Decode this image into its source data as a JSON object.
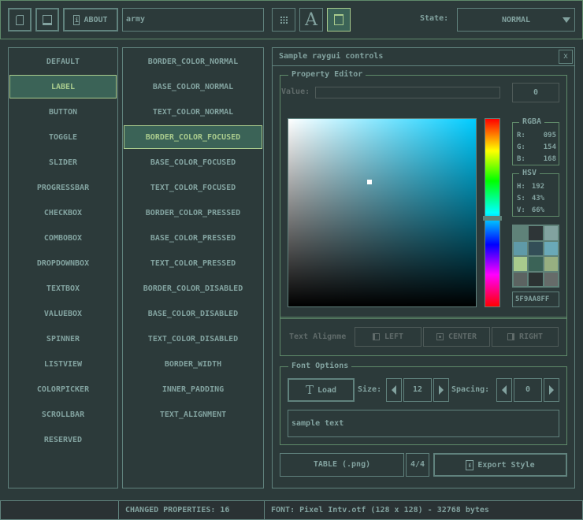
{
  "toolbar": {
    "about_label": "ABOUT",
    "style_name": "army",
    "state_label": "State:",
    "state_value": "NORMAL"
  },
  "controls": [
    "DEFAULT",
    "LABEL",
    "BUTTON",
    "TOGGLE",
    "SLIDER",
    "PROGRESSBAR",
    "CHECKBOX",
    "COMBOBOX",
    "DROPDOWNBOX",
    "TEXTBOX",
    "VALUEBOX",
    "SPINNER",
    "LISTVIEW",
    "COLORPICKER",
    "SCROLLBAR",
    "RESERVED"
  ],
  "controls_selected": 1,
  "properties": [
    "BORDER_COLOR_NORMAL",
    "BASE_COLOR_NORMAL",
    "TEXT_COLOR_NORMAL",
    "BORDER_COLOR_FOCUSED",
    "BASE_COLOR_FOCUSED",
    "TEXT_COLOR_FOCUSED",
    "BORDER_COLOR_PRESSED",
    "BASE_COLOR_PRESSED",
    "TEXT_COLOR_PRESSED",
    "BORDER_COLOR_DISABLED",
    "BASE_COLOR_DISABLED",
    "TEXT_COLOR_DISABLED",
    "BORDER_WIDTH",
    "INNER_PADDING",
    "TEXT_ALIGNMENT"
  ],
  "properties_selected": 3,
  "window": {
    "title": "Sample raygui controls",
    "close": "x"
  },
  "property_editor": {
    "title": "Property Editor",
    "value_label": "Value:",
    "value_input": "",
    "value_spinner": "0",
    "rgba": {
      "title": "RGBA",
      "r_label": "R:",
      "r": "095",
      "g_label": "G:",
      "g": "154",
      "b_label": "B:",
      "b": "168"
    },
    "hsv": {
      "title": "HSV",
      "h_label": "H:",
      "h": "192",
      "s_label": "S:",
      "s": "43%",
      "v_label": "V:",
      "v": "66%"
    },
    "hex": "5F9AA8FF",
    "hue_level": 0.53,
    "swatches": [
      "#5f8279",
      "#2e3537",
      "#82a29f",
      "#5f9aa8",
      "#334e57",
      "#6aa9b8",
      "#a9cb8d",
      "#3b6357",
      "#97af81",
      "#5c6361",
      "#2c3333",
      "#666b69"
    ],
    "align_label": "Text Alignme",
    "align_left": "LEFT",
    "align_center": "CENTER",
    "align_right": "RIGHT"
  },
  "font_options": {
    "title": "Font Options",
    "load": "Load",
    "size_label": "Size:",
    "size": "12",
    "spacing_label": "Spacing:",
    "spacing": "0",
    "sample": "sample text"
  },
  "bottom": {
    "table": "TABLE (.png)",
    "page": "4/4",
    "export": "Export Style"
  },
  "status": {
    "changed": "CHANGED PROPERTIES: 16",
    "font": "FONT: Pixel Intv.otf (128 x 128) - 32768 bytes"
  },
  "colors": {
    "background": "#2c3a3a",
    "border": "#60827d",
    "text": "#82a29f",
    "focused_border": "#a9cb8d",
    "focused_base": "#3b6357",
    "selected_color": "#5f9aa8"
  }
}
